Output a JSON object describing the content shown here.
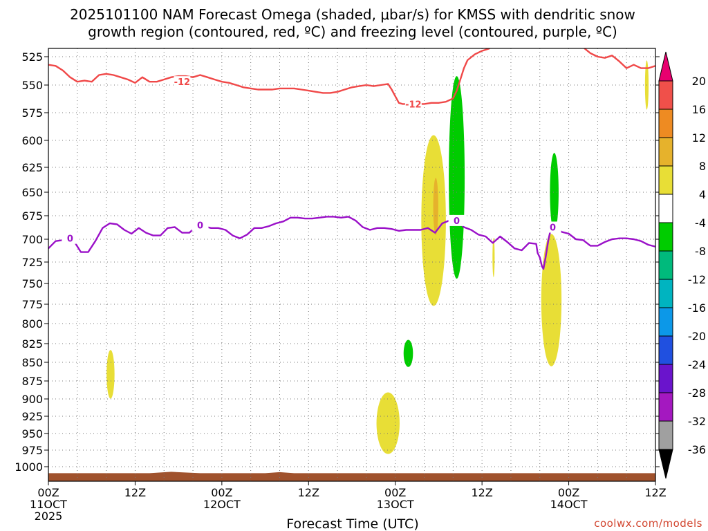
{
  "chart_data": {
    "type": "time-height cross section",
    "title_line1": "2025101100 NAM Forecast Omega (shaded, μbar/s) for KMSS with dendritic snow",
    "title_line2": "growth region (contoured, red, ºC) and freezing level (contoured, purple, ºC)",
    "xlabel": "Forecast Time (UTC)",
    "credit": "coolwx.com/models",
    "x_range_hours": [
      0,
      84
    ],
    "y_range_mb": [
      1015,
      518
    ],
    "y_ticks": [
      525,
      550,
      575,
      600,
      625,
      650,
      675,
      700,
      725,
      750,
      775,
      800,
      825,
      850,
      875,
      900,
      925,
      950,
      975,
      1000
    ],
    "x_ticks": [
      {
        "h": 0,
        "l1": "00Z",
        "l2": "11OCT",
        "l3": "2025"
      },
      {
        "h": 12,
        "l1": "12Z",
        "l2": "",
        "l3": ""
      },
      {
        "h": 24,
        "l1": "00Z",
        "l2": "12OCT",
        "l3": ""
      },
      {
        "h": 36,
        "l1": "12Z",
        "l2": "",
        "l3": ""
      },
      {
        "h": 48,
        "l1": "00Z",
        "l2": "13OCT",
        "l3": ""
      },
      {
        "h": 60,
        "l1": "12Z",
        "l2": "",
        "l3": ""
      },
      {
        "h": 72,
        "l1": "00Z",
        "l2": "14OCT",
        "l3": ""
      },
      {
        "h": 84,
        "l1": "12Z",
        "l2": "",
        "l3": ""
      }
    ],
    "colorbar": {
      "labels": [
        "20",
        "16",
        "12",
        "8",
        "4",
        "-4",
        "-8",
        "-12",
        "-16",
        "-20",
        "-24",
        "-28",
        "-32",
        "-36"
      ],
      "colors": [
        "#e8006f",
        "#f0504a",
        "#ee8b22",
        "#e6b22c",
        "#e8de36",
        "#ffffff",
        "#00cc00",
        "#00ba7c",
        "#00b4c0",
        "#0c98e8",
        "#2050e0",
        "#6a14cc",
        "#a418c0",
        "#a0a0a0",
        "#000000"
      ]
    },
    "series": [
      {
        "name": "dendritic snow growth region (-12 ºC isotherm)",
        "color": "#f04848",
        "label": "-12",
        "label_points": [
          [
            18.5,
            547
          ],
          [
            50.5,
            567
          ]
        ],
        "segments": [
          [
            [
              0,
              532
            ],
            [
              1,
              533
            ],
            [
              2,
              537
            ],
            [
              3,
              543
            ],
            [
              4,
              547
            ],
            [
              5,
              546
            ],
            [
              6,
              547
            ],
            [
              7,
              541
            ],
            [
              8,
              540
            ],
            [
              9,
              541
            ],
            [
              10,
              543
            ],
            [
              11,
              545
            ],
            [
              12,
              548
            ],
            [
              13,
              543
            ],
            [
              14,
              547
            ],
            [
              15,
              547
            ],
            [
              16,
              545
            ],
            [
              17,
              543
            ],
            [
              18,
              542
            ],
            [
              19,
              542
            ],
            [
              20,
              543
            ],
            [
              21,
              541
            ],
            [
              22,
              543
            ],
            [
              23,
              545
            ],
            [
              24,
              547
            ],
            [
              25,
              548
            ],
            [
              26,
              550
            ],
            [
              27,
              552
            ],
            [
              28,
              553
            ],
            [
              29,
              554
            ],
            [
              30,
              554
            ],
            [
              31,
              554
            ],
            [
              32,
              553
            ],
            [
              33,
              553
            ],
            [
              34,
              553
            ],
            [
              35,
              554
            ],
            [
              36,
              555
            ],
            [
              37,
              556
            ],
            [
              38,
              557
            ],
            [
              39,
              557
            ],
            [
              40,
              556
            ],
            [
              41,
              554
            ],
            [
              42,
              552
            ],
            [
              43,
              551
            ],
            [
              44,
              550
            ],
            [
              45,
              551
            ],
            [
              46,
              550
            ],
            [
              47,
              549
            ],
            [
              47.5,
              554
            ],
            [
              48,
              560
            ],
            [
              48.5,
              566
            ],
            [
              49,
              567
            ],
            [
              50,
              567
            ],
            [
              51,
              567
            ],
            [
              52,
              567
            ],
            [
              53,
              566
            ],
            [
              54,
              566
            ],
            [
              55,
              565
            ],
            [
              56,
              562
            ],
            [
              56.5,
              555
            ],
            [
              57,
              545
            ],
            [
              57.5,
              535
            ],
            [
              58,
              528
            ],
            [
              59,
              523
            ],
            [
              60,
              520
            ],
            [
              61,
              518
            ]
          ],
          [
            [
              74.2,
              518
            ],
            [
              75,
              522
            ],
            [
              76,
              525
            ],
            [
              77,
              526
            ],
            [
              78,
              524
            ],
            [
              79,
              529
            ],
            [
              80,
              535
            ],
            [
              81,
              532
            ],
            [
              82,
              535
            ],
            [
              83,
              535
            ],
            [
              84,
              533
            ]
          ]
        ]
      },
      {
        "name": "freezing level (0 ºC isotherm)",
        "color": "#9a10c8",
        "label": "0",
        "label_points": [
          [
            3.0,
            699
          ],
          [
            21.0,
            685
          ],
          [
            56.5,
            680
          ],
          [
            69.8,
            687
          ]
        ],
        "segments": [
          [
            [
              0,
              710
            ],
            [
              1,
              702
            ],
            [
              2,
              701
            ],
            [
              3,
              699
            ],
            [
              3.7,
              704
            ],
            [
              4.5,
              714
            ],
            [
              5.5,
              714
            ],
            [
              6.5,
              702
            ],
            [
              7.5,
              688
            ],
            [
              8.5,
              683
            ],
            [
              9.5,
              684
            ],
            [
              10.5,
              690
            ],
            [
              11.5,
              694
            ],
            [
              12.5,
              688
            ],
            [
              13.5,
              693
            ],
            [
              14.5,
              696
            ],
            [
              15.5,
              696
            ],
            [
              16.5,
              688
            ],
            [
              17.5,
              687
            ],
            [
              18.5,
              693
            ],
            [
              19.5,
              693
            ],
            [
              20.5,
              686
            ],
            [
              21.5,
              686
            ],
            [
              22.5,
              688
            ],
            [
              23.5,
              688
            ],
            [
              24.5,
              690
            ],
            [
              25.5,
              696
            ],
            [
              26.5,
              699
            ],
            [
              27.5,
              695
            ],
            [
              28.5,
              688
            ],
            [
              29.5,
              688
            ],
            [
              30.5,
              686
            ],
            [
              31.5,
              683
            ],
            [
              32.5,
              681
            ],
            [
              33.5,
              677
            ],
            [
              34.5,
              677
            ],
            [
              35.5,
              678
            ],
            [
              36.5,
              678
            ],
            [
              37.5,
              677
            ],
            [
              38.5,
              676
            ],
            [
              39.5,
              676
            ],
            [
              40.5,
              677
            ],
            [
              41.5,
              676
            ],
            [
              42.5,
              680
            ],
            [
              43.5,
              687
            ],
            [
              44.5,
              690
            ],
            [
              45.5,
              688
            ],
            [
              46.5,
              688
            ],
            [
              47.5,
              689
            ],
            [
              48.5,
              691
            ],
            [
              49.5,
              690
            ],
            [
              50.5,
              690
            ],
            [
              51.5,
              690
            ],
            [
              52.5,
              688
            ],
            [
              53.5,
              693
            ],
            [
              54.5,
              683
            ],
            [
              55.5,
              680
            ],
            [
              56.5,
              680
            ],
            [
              57.5,
              687
            ],
            [
              58.5,
              690
            ],
            [
              59.5,
              695
            ],
            [
              60.5,
              697
            ],
            [
              61.5,
              704
            ],
            [
              62.5,
              697
            ],
            [
              63.5,
              703
            ],
            [
              64.5,
              710
            ],
            [
              65.5,
              712
            ],
            [
              66.5,
              704
            ],
            [
              67.5,
              705
            ],
            [
              67.7,
              715
            ],
            [
              68,
              720
            ],
            [
              68.3,
              730
            ],
            [
              68.5,
              733
            ],
            [
              68.8,
              720
            ],
            [
              69.2,
              700
            ],
            [
              69.5,
              690
            ],
            [
              70,
              686
            ],
            [
              71,
              692
            ],
            [
              72,
              694
            ],
            [
              73,
              700
            ],
            [
              74,
              701
            ],
            [
              75,
              707
            ],
            [
              76,
              707
            ],
            [
              77,
              703
            ],
            [
              78,
              700
            ],
            [
              79,
              699
            ],
            [
              80,
              699
            ],
            [
              81,
              700
            ],
            [
              82,
              702
            ],
            [
              83,
              706
            ],
            [
              84,
              708
            ]
          ]
        ]
      }
    ],
    "omega_regions": [
      {
        "band": "4 to 8",
        "color": "#e8de36",
        "center_hour": 8.6,
        "center_mb": 866,
        "radius_hours": 0.55,
        "radius_mb": 33
      },
      {
        "band": "4 to 8",
        "color": "#e8de36",
        "center_hour": 47.0,
        "center_mb": 935,
        "radius_hours": 1.6,
        "radius_mb": 45
      },
      {
        "band": "4 to 8",
        "color": "#e8de36",
        "center_hour": 53.3,
        "center_mb": 680,
        "radius_hours": 1.7,
        "radius_mb": 90
      },
      {
        "band": "8 to 12",
        "color": "#e6b22c",
        "center_hour": 53.6,
        "center_mb": 665,
        "radius_hours": 0.35,
        "radius_mb": 30
      },
      {
        "band": "4 to 8",
        "color": "#e8de36",
        "center_hour": 52.4,
        "center_mb": 660,
        "radius_hours": 0.5,
        "radius_mb": 45
      },
      {
        "band": "4 to 8",
        "color": "#e8de36",
        "center_hour": 61.6,
        "center_mb": 720,
        "radius_hours": 0.15,
        "radius_mb": 22
      },
      {
        "band": "4 to 8",
        "color": "#e8de36",
        "center_hour": 69.6,
        "center_mb": 770,
        "radius_hours": 1.4,
        "radius_mb": 80
      },
      {
        "band": "4 to 8",
        "color": "#e8de36",
        "center_hour": 82.8,
        "center_mb": 550,
        "radius_hours": 0.25,
        "radius_mb": 22
      },
      {
        "band": "-4 to -8",
        "color": "#00cc00",
        "center_hour": 56.5,
        "center_mb": 635,
        "radius_hours": 1.1,
        "radius_mb": 100
      },
      {
        "band": "-4 to -8",
        "color": "#00cc00",
        "center_hour": 70.0,
        "center_mb": 650,
        "radius_hours": 0.6,
        "radius_mb": 40
      },
      {
        "band": "-4 to -8",
        "color": "#00cc00",
        "center_hour": 49.8,
        "center_mb": 838,
        "radius_hours": 0.65,
        "radius_mb": 18
      }
    ],
    "terrain": {
      "color": "#a0522d",
      "top_mb": 1010
    }
  }
}
